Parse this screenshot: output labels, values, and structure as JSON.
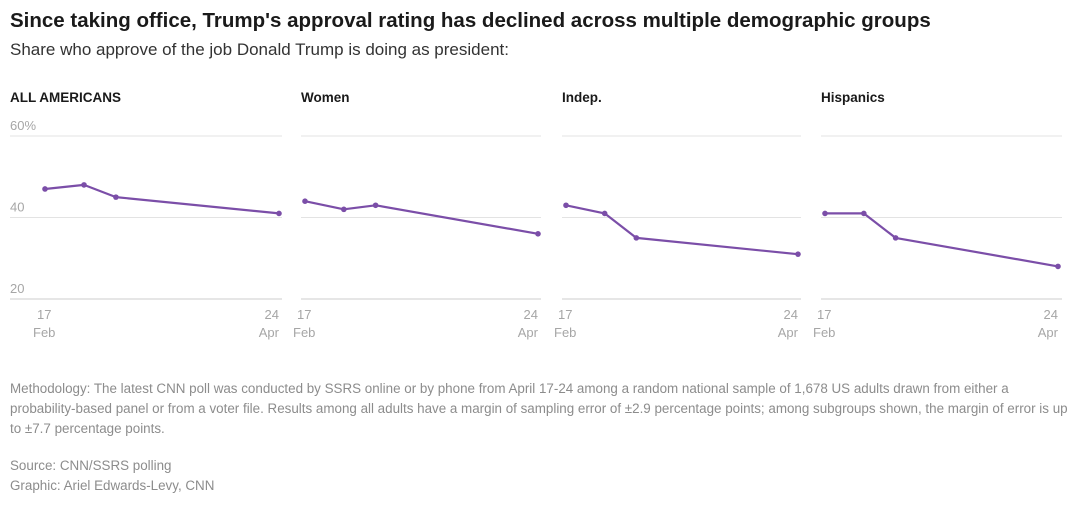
{
  "title": "Since taking office, Trump's approval rating has declined across multiple demographic groups",
  "subtitle": "Share who approve of the job Donald Trump is doing as president:",
  "chart_data": [
    {
      "type": "line",
      "title": "ALL AMERICANS",
      "x": [
        "Feb 17",
        "Feb 28",
        "Mar 9",
        "Apr 24"
      ],
      "series": [
        {
          "values": [
            47,
            48,
            45,
            41
          ]
        }
      ],
      "ylim": [
        20,
        60
      ],
      "yticks": [
        "60%",
        "40",
        "20"
      ],
      "xticks": [
        {
          "day": "17",
          "month": "Feb"
        },
        {
          "day": "24",
          "month": "Apr"
        }
      ],
      "grid": true
    },
    {
      "type": "line",
      "title": "Women",
      "x": [
        "Feb 17",
        "Feb 28",
        "Mar 9",
        "Apr 24"
      ],
      "series": [
        {
          "values": [
            44,
            42,
            43,
            36
          ]
        }
      ],
      "ylim": [
        20,
        60
      ],
      "xticks": [
        {
          "day": "17",
          "month": "Feb"
        },
        {
          "day": "24",
          "month": "Apr"
        }
      ],
      "grid": true
    },
    {
      "type": "line",
      "title": "Indep.",
      "x": [
        "Feb 17",
        "Feb 28",
        "Mar 9",
        "Apr 24"
      ],
      "series": [
        {
          "values": [
            43,
            41,
            35,
            31
          ]
        }
      ],
      "ylim": [
        20,
        60
      ],
      "xticks": [
        {
          "day": "17",
          "month": "Feb"
        },
        {
          "day": "24",
          "month": "Apr"
        }
      ],
      "grid": true
    },
    {
      "type": "line",
      "title": "Hispanics",
      "x": [
        "Feb 17",
        "Feb 28",
        "Mar 9",
        "Apr 24"
      ],
      "series": [
        {
          "values": [
            41,
            41,
            35,
            28
          ]
        }
      ],
      "ylim": [
        20,
        60
      ],
      "xticks": [
        {
          "day": "17",
          "month": "Feb"
        },
        {
          "day": "24",
          "month": "Apr"
        }
      ],
      "grid": true
    }
  ],
  "colors": {
    "line": "#7b4ea8",
    "grid": "#e3e3e3",
    "axis": "#cccccc"
  },
  "footer": {
    "methodology": "Methodology: The latest CNN poll was conducted by SSRS online or by phone from April 17-24 among a random national sample of 1,678 US adults drawn from either a probability-based panel or from a voter file. Results among all adults have a margin of sampling error of ±2.9 percentage points; among subgroups shown, the margin of error is up to ±7.7 percentage points.",
    "source": "Source: CNN/SSRS polling",
    "credit": "Graphic: Ariel Edwards-Levy, CNN"
  }
}
